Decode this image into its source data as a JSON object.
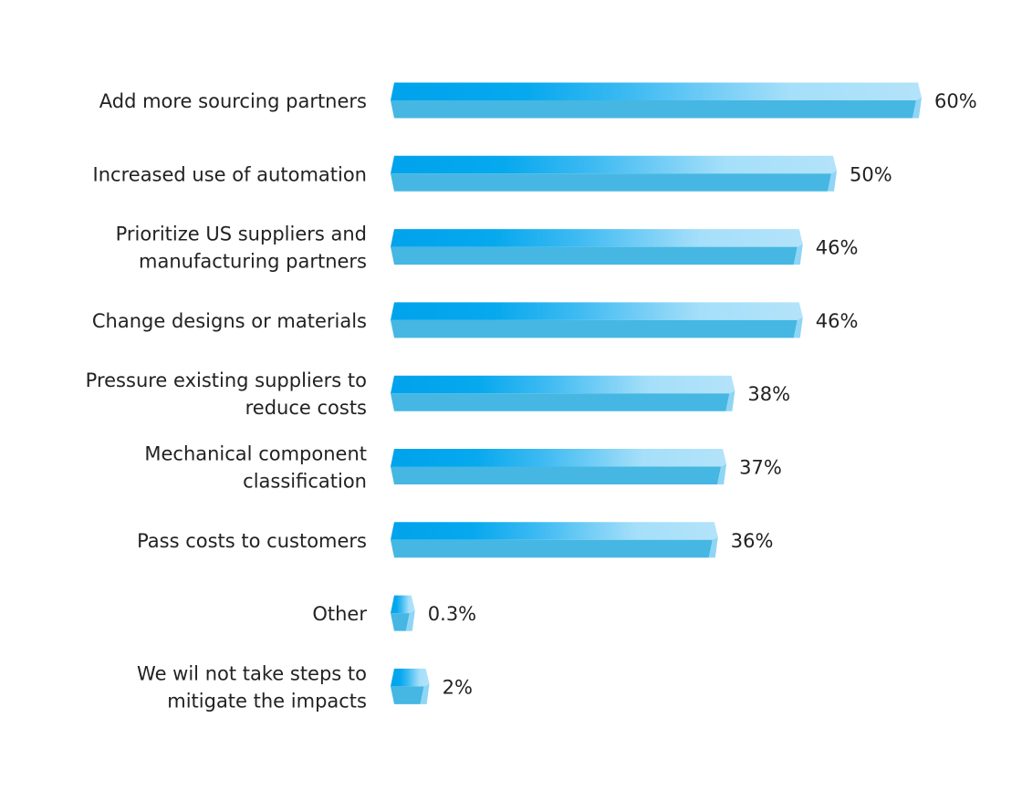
{
  "chart_data": {
    "type": "bar",
    "orientation": "horizontal",
    "categories": [
      [
        "Add more sourcing partners"
      ],
      [
        "Increased use of automation"
      ],
      [
        "Prioritize US suppliers and",
        "manufacturing partners"
      ],
      [
        "Change designs or materials"
      ],
      [
        "Pressure existing suppliers to",
        "reduce costs"
      ],
      [
        "Mechanical component",
        "classification"
      ],
      [
        "Pass costs to customers"
      ],
      [
        "Other"
      ],
      [
        "We wil not take steps to",
        "mitigate the impacts"
      ]
    ],
    "values": [
      60,
      50,
      46,
      46,
      38,
      37,
      36,
      0.3,
      2
    ],
    "value_labels": [
      "60%",
      "50%",
      "46%",
      "46%",
      "38%",
      "37%",
      "36%",
      "0.3%",
      "2%"
    ],
    "title": "",
    "xlabel": "",
    "ylabel": "",
    "grid": false,
    "legend": "none",
    "colors": {
      "gradient_start": "#00a3ec",
      "gradient_end": "#b3e3fa",
      "bottom_face": "#45b7e2",
      "text": "#222222"
    }
  }
}
